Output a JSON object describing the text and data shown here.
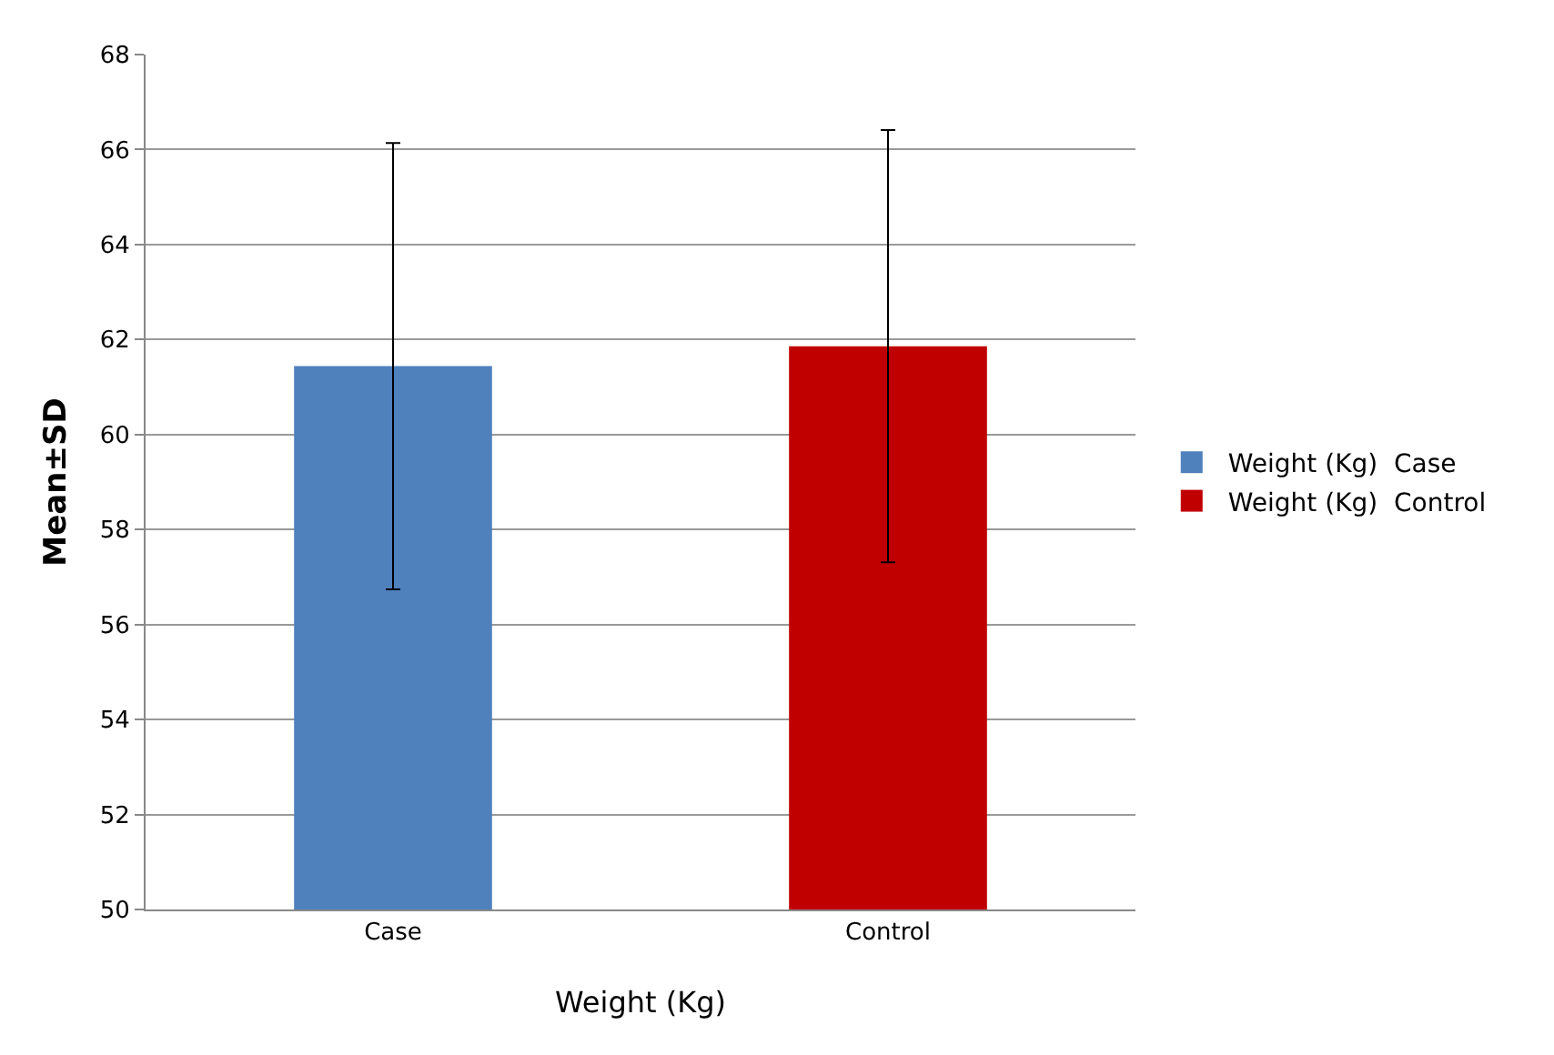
{
  "chart_data": {
    "type": "bar",
    "categories": [
      "Case",
      "Control"
    ],
    "xlabel": "Weight (Kg)",
    "ylabel": "Mean±SD",
    "series": [
      {
        "name": "Weight (Kg)  Case",
        "color": "#4f81bd",
        "values": [
          61.44,
          null
        ],
        "errors": [
          4.7,
          null
        ]
      },
      {
        "name": "Weight (Kg)  Control",
        "color": "#c00000",
        "values": [
          null,
          61.86
        ],
        "errors": [
          null,
          4.55
        ]
      }
    ],
    "ylim": [
      50,
      68
    ],
    "yticks": [
      50,
      52,
      54,
      56,
      58,
      60,
      62,
      64,
      66,
      68
    ],
    "grid": "y",
    "legend": "right"
  }
}
